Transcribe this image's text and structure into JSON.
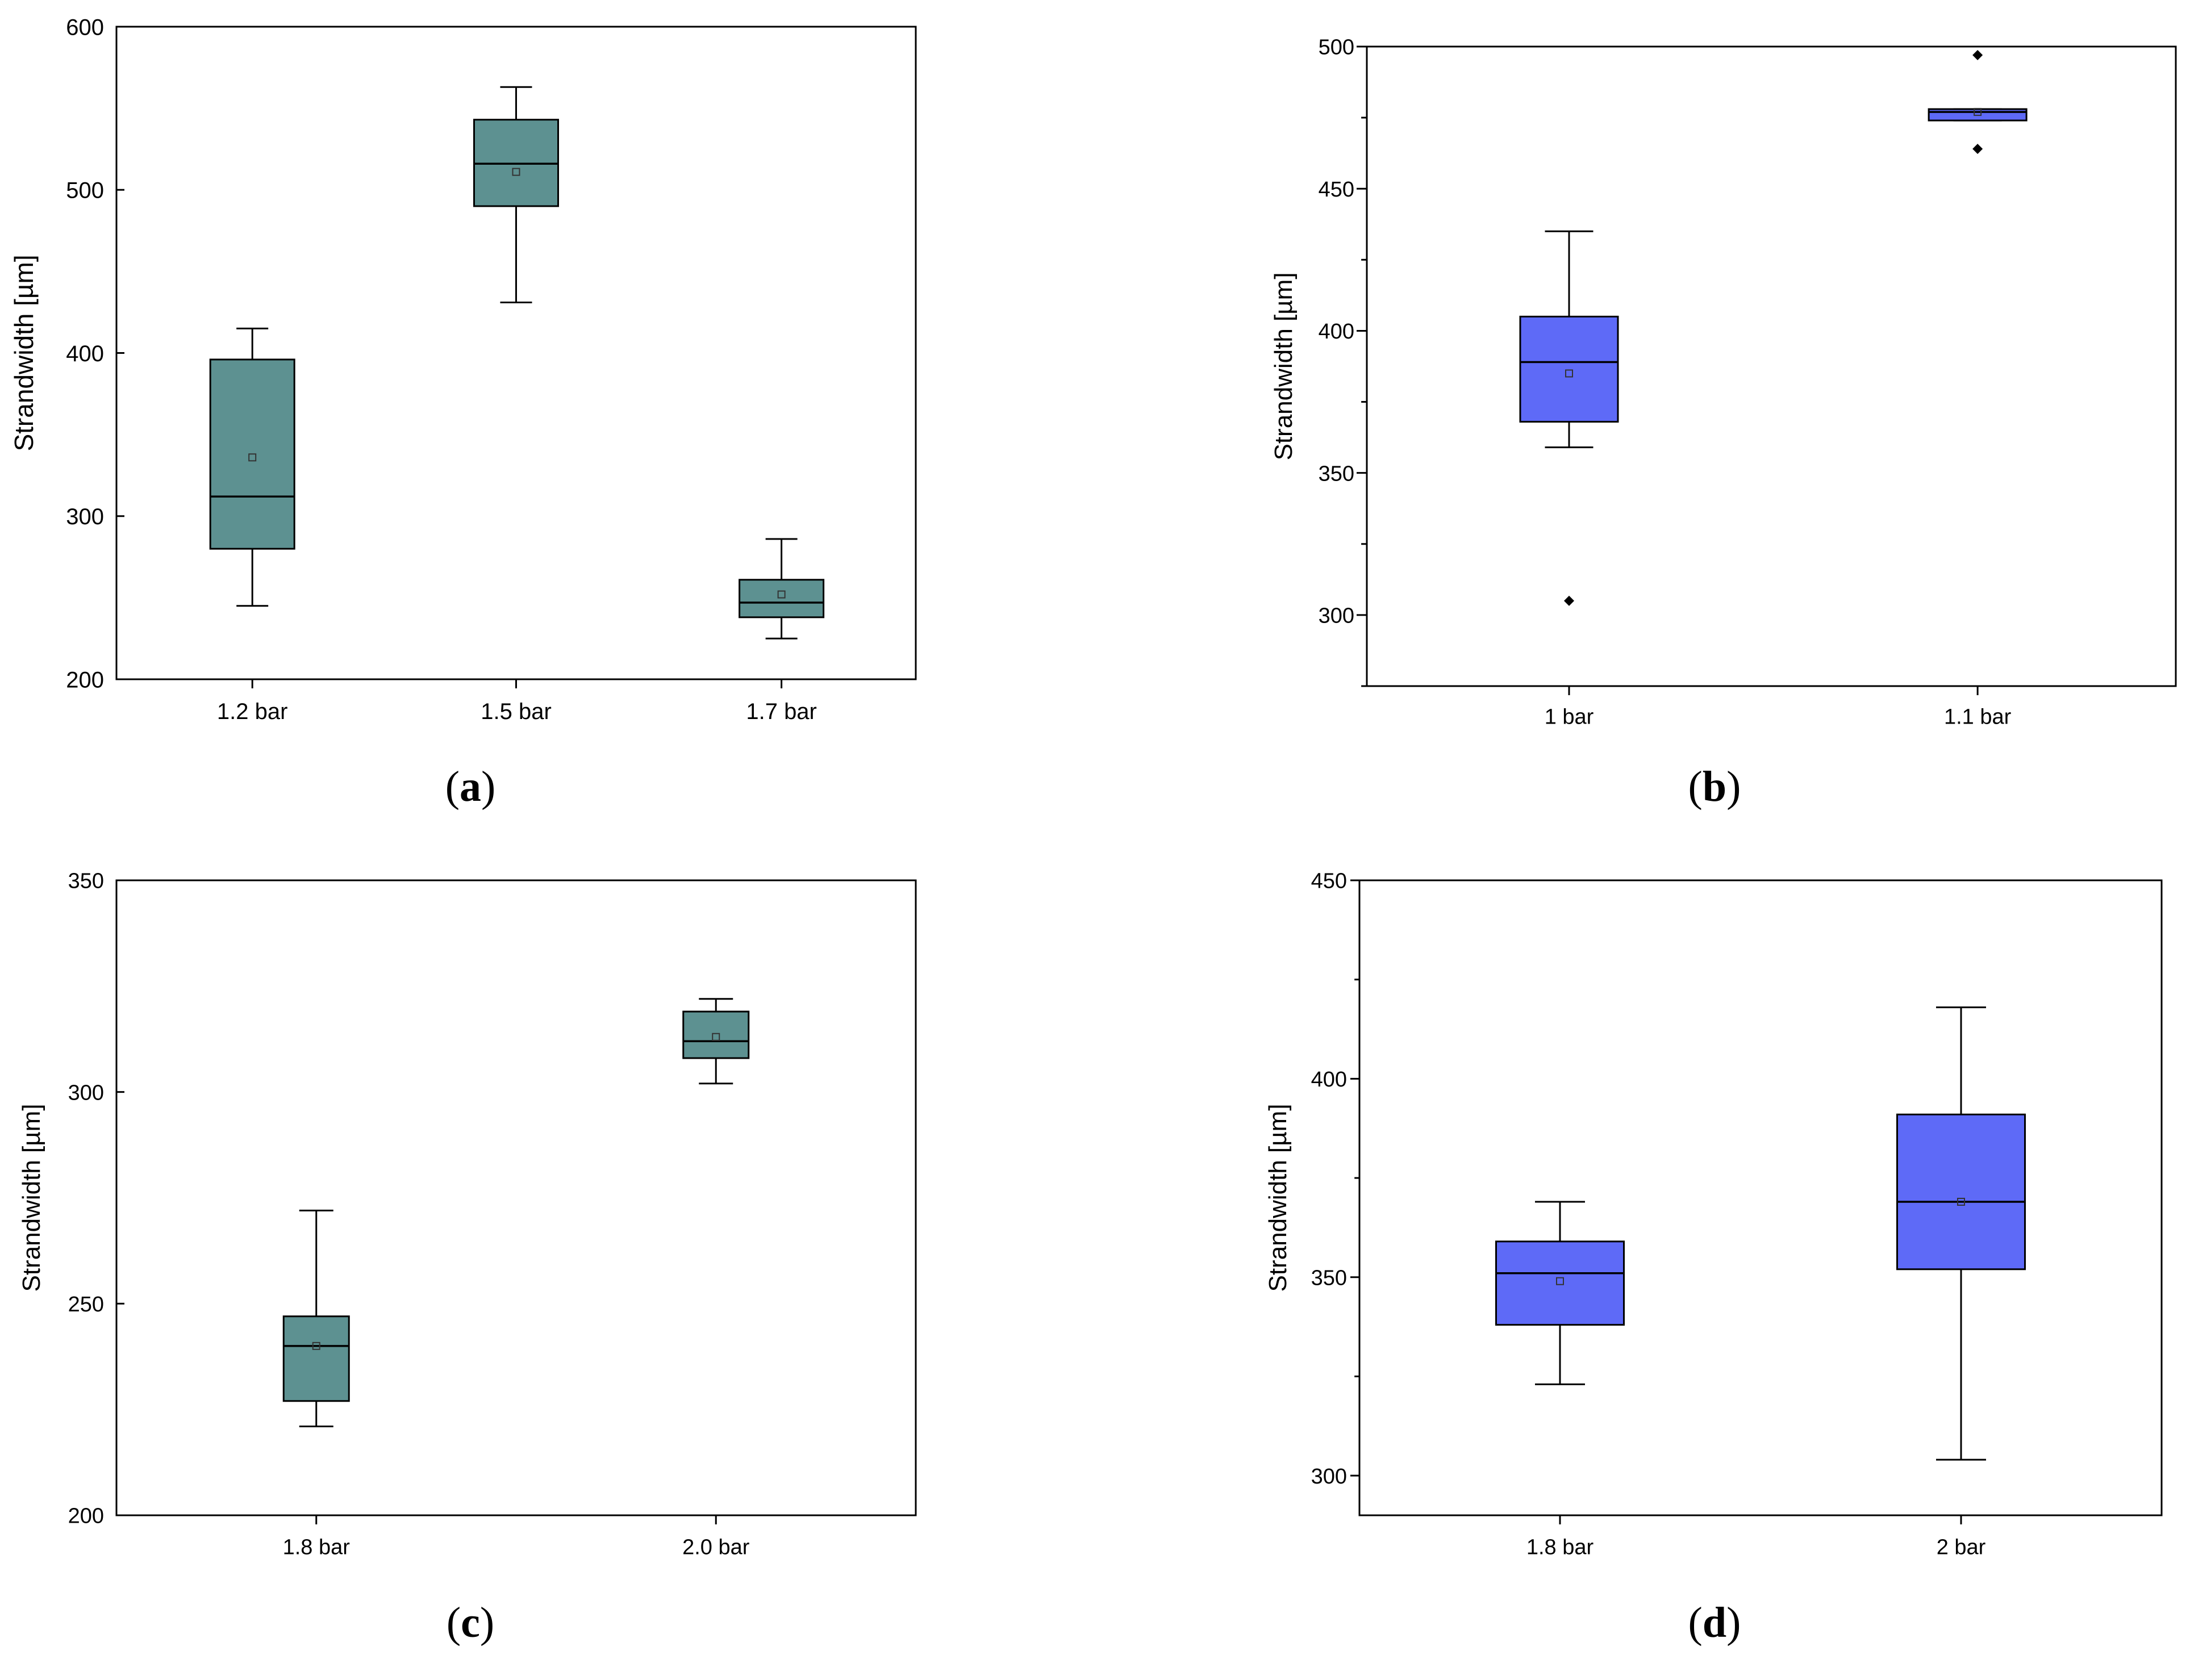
{
  "colors": {
    "teal": "#5d9191",
    "blue": "#5e6af7",
    "axis": "#000000",
    "background": "#ffffff"
  },
  "chart_data": [
    {
      "id": "a",
      "type": "box",
      "caption_letter": "a",
      "ylabel": "Strandwidth [µm]",
      "ylim": [
        200,
        600
      ],
      "yticks": [
        200,
        300,
        400,
        500,
        600
      ],
      "minor_yticks": [],
      "color_key": "teal",
      "categories": [
        "1.2 bar",
        "1.5 bar",
        "1.7 bar"
      ],
      "boxes": [
        {
          "whisker_low": 245,
          "q1": 280,
          "median": 312,
          "q3": 396,
          "whisker_high": 415,
          "mean": 336,
          "outliers": []
        },
        {
          "whisker_low": 431,
          "q1": 490,
          "median": 516,
          "q3": 543,
          "whisker_high": 563,
          "mean": 511,
          "outliers": []
        },
        {
          "whisker_low": 225,
          "q1": 238,
          "median": 247,
          "q3": 261,
          "whisker_high": 286,
          "mean": 252,
          "outliers": []
        }
      ]
    },
    {
      "id": "b",
      "type": "box",
      "caption_letter": "b",
      "ylabel": "Strandwidth [µm]",
      "ylim": [
        275,
        500
      ],
      "yticks": [
        300,
        350,
        400,
        450,
        500
      ],
      "minor_yticks": [
        275,
        325,
        375,
        425,
        475
      ],
      "color_key": "blue",
      "categories": [
        "1 bar",
        "1.1 bar"
      ],
      "boxes": [
        {
          "whisker_low": 359,
          "q1": 368,
          "median": 389,
          "q3": 405,
          "whisker_high": 435,
          "mean": 385,
          "outliers": [
            305
          ]
        },
        {
          "whisker_low": 474,
          "q1": 474,
          "median": 477,
          "q3": 478,
          "whisker_high": 478,
          "mean": 477,
          "outliers": [
            497,
            464
          ]
        }
      ]
    },
    {
      "id": "c",
      "type": "box",
      "caption_letter": "c",
      "ylabel": "Strandwidth [µm]",
      "ylim": [
        200,
        350
      ],
      "yticks": [
        200,
        250,
        300,
        350
      ],
      "minor_yticks": [],
      "color_key": "teal",
      "categories": [
        "1.8 bar",
        "2.0 bar"
      ],
      "boxes": [
        {
          "whisker_low": 221,
          "q1": 227,
          "median": 240,
          "q3": 247,
          "whisker_high": 272,
          "mean": 240,
          "outliers": []
        },
        {
          "whisker_low": 302,
          "q1": 308,
          "median": 312,
          "q3": 319,
          "whisker_high": 322,
          "mean": 313,
          "outliers": []
        }
      ]
    },
    {
      "id": "d",
      "type": "box",
      "caption_letter": "d",
      "ylabel": "Strandwidth [µm]",
      "ylim": [
        290,
        450
      ],
      "yticks": [
        300,
        350,
        400,
        450
      ],
      "minor_yticks": [
        325,
        375,
        425
      ],
      "color_key": "blue",
      "categories": [
        "1.8 bar",
        "2 bar"
      ],
      "boxes": [
        {
          "whisker_low": 323,
          "q1": 338,
          "median": 351,
          "q3": 359,
          "whisker_high": 369,
          "mean": 349,
          "outliers": []
        },
        {
          "whisker_low": 304,
          "q1": 352,
          "median": 369,
          "q3": 391,
          "whisker_high": 418,
          "mean": 369,
          "outliers": []
        }
      ]
    }
  ]
}
